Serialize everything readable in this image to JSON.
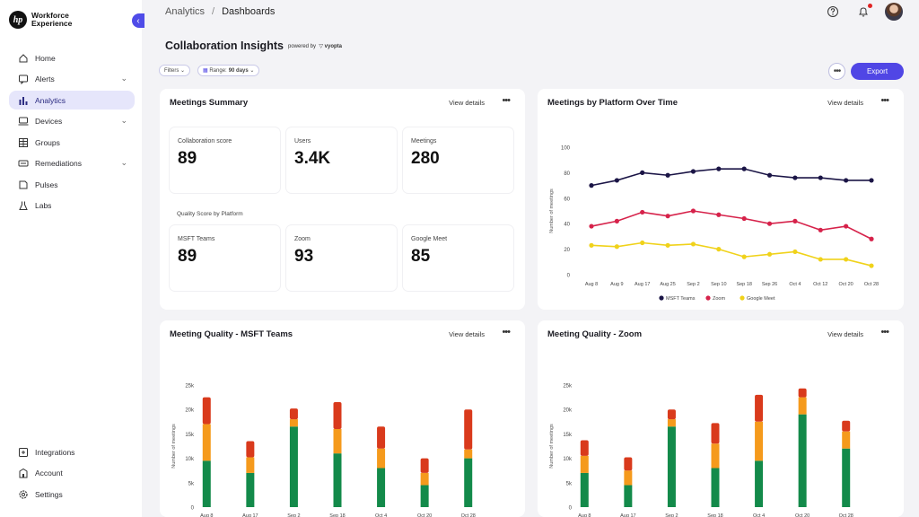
{
  "app": {
    "brand_mark": "hp",
    "name_line1": "Workforce",
    "name_line2": "Experience"
  },
  "sidebar": {
    "items": [
      {
        "label": "Home",
        "icon": "home-icon"
      },
      {
        "label": "Alerts",
        "icon": "alert-icon",
        "expandable": true
      },
      {
        "label": "Analytics",
        "icon": "analytics-icon",
        "active": true
      },
      {
        "label": "Devices",
        "icon": "devices-icon",
        "expandable": true
      },
      {
        "label": "Groups",
        "icon": "groups-icon"
      },
      {
        "label": "Remediations",
        "icon": "remediations-icon",
        "expandable": true
      },
      {
        "label": "Pulses",
        "icon": "pulses-icon"
      },
      {
        "label": "Labs",
        "icon": "labs-icon"
      }
    ],
    "bottom_items": [
      {
        "label": "Integrations",
        "icon": "integrations-icon"
      },
      {
        "label": "Account",
        "icon": "account-icon"
      },
      {
        "label": "Settings",
        "icon": "gear-icon"
      }
    ]
  },
  "header": {
    "breadcrumb": [
      "Analytics",
      "Dashboards"
    ],
    "help_icon": "help-icon",
    "notification_icon": "bell-icon"
  },
  "page": {
    "title": "Collaboration Insights",
    "powered_by": "powered by",
    "partner": "vyopta",
    "filters_label": "Filters",
    "range_label": "Range:",
    "range_value": "90 days",
    "export_label": "Export"
  },
  "colors": {
    "accent": "#5046e5",
    "msft_teams": "#1b1546",
    "zoom": "#d6224a",
    "google_meet": "#f0d21a",
    "quality_good": "#138a4a",
    "quality_fair": "#f59a1c",
    "quality_poor": "#d93a1c"
  },
  "meetings_summary": {
    "title": "Meetings Summary",
    "view_details": "View details",
    "stats": [
      {
        "label": "Collaboration score",
        "value": "89"
      },
      {
        "label": "Users",
        "value": "3.4K"
      },
      {
        "label": "Meetings",
        "value": "280"
      }
    ],
    "quality_section_label": "Quality Score by Platform",
    "quality": [
      {
        "label": "MSFT Teams",
        "value": "89"
      },
      {
        "label": "Zoom",
        "value": "93"
      },
      {
        "label": "Google Meet",
        "value": "85"
      }
    ]
  },
  "chart_data": [
    {
      "type": "line",
      "title": "Meetings by Platform Over Time",
      "view_details": "View details",
      "ylabel": "Number of meetings",
      "ylim": [
        0,
        100
      ],
      "yticks": [
        0,
        20,
        40,
        60,
        80,
        100
      ],
      "x": [
        "Aug 8",
        "Aug 9",
        "Aug 17",
        "Aug 25",
        "Sep 2",
        "Sep 10",
        "Sep 18",
        "Sep 26",
        "Oct 4",
        "Oct 12",
        "Oct 20",
        "Oct 28"
      ],
      "legend": "bottom",
      "series": [
        {
          "name": "MSFT Teams",
          "values": [
            70,
            74,
            80,
            78,
            81,
            83,
            83,
            78,
            76,
            76,
            74,
            74
          ]
        },
        {
          "name": "Zoom",
          "values": [
            38,
            42,
            49,
            46,
            50,
            47,
            44,
            40,
            42,
            35,
            38,
            28
          ]
        },
        {
          "name": "Google Meet",
          "values": [
            23,
            22,
            25,
            23,
            24,
            20,
            14,
            16,
            18,
            12,
            12,
            7
          ]
        }
      ]
    },
    {
      "type": "bar",
      "stacked": true,
      "title": "Meeting Quality - MSFT Teams",
      "view_details": "View details",
      "ylabel": "Number of meetings",
      "ylim": [
        0,
        25000
      ],
      "yticks": [
        "0",
        "5k",
        "10k",
        "15k",
        "20k",
        "25k"
      ],
      "categories": [
        "Aug 8",
        "Aug 17",
        "Sep 2",
        "Sep 18",
        "Oct 4",
        "Oct 20",
        "Oct 28"
      ],
      "series": [
        {
          "values": [
            9500,
            7000,
            16500,
            11000,
            8000,
            4500,
            10000
          ]
        },
        {
          "values": [
            7500,
            3200,
            1500,
            5000,
            4000,
            2500,
            1800
          ]
        },
        {
          "values": [
            5500,
            3300,
            2200,
            5500,
            4500,
            3000,
            8200
          ]
        }
      ]
    },
    {
      "type": "bar",
      "stacked": true,
      "title": "Meeting Quality - Zoom",
      "view_details": "View details",
      "ylabel": "Number of meetings",
      "ylim": [
        0,
        25000
      ],
      "yticks": [
        "0",
        "5k",
        "10k",
        "15k",
        "20k",
        "25k"
      ],
      "categories": [
        "Aug 8",
        "Aug 17",
        "Sep 2",
        "Sep 18",
        "Oct 4",
        "Oct 20",
        "Oct 28"
      ],
      "series": [
        {
          "values": [
            7000,
            4500,
            16500,
            8000,
            9500,
            19000,
            12000
          ]
        },
        {
          "values": [
            3500,
            3000,
            1500,
            5000,
            8000,
            3500,
            3500
          ]
        },
        {
          "values": [
            3200,
            2700,
            2000,
            4200,
            5500,
            1800,
            2200
          ]
        }
      ]
    }
  ]
}
